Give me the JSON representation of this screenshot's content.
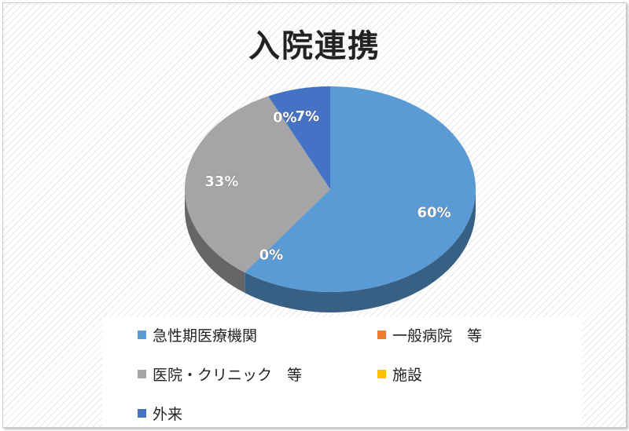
{
  "chart_data": {
    "type": "pie",
    "title": "入院連携",
    "categories": [
      "急性期医療機関",
      "一般病院　等",
      "医院・クリニック　等",
      "施設",
      "外来"
    ],
    "values": [
      60,
      0,
      33,
      0,
      7
    ],
    "labels": [
      "60%",
      "0%",
      "33%",
      "0%",
      "7%"
    ],
    "colors": [
      "#5b9bd5",
      "#ed7d31",
      "#a5a5a5",
      "#ffc000",
      "#4472c4"
    ],
    "legend_position": "bottom"
  }
}
